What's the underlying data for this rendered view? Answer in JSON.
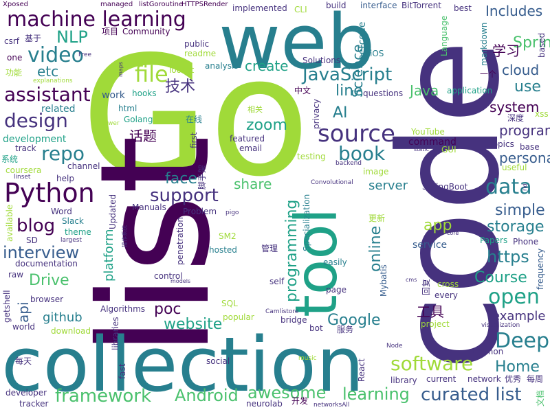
{
  "words": {
    "go": "Go",
    "list": "list",
    "code": "code",
    "collection": "collection",
    "web": "web",
    "tool": "tool",
    "machine_learning": "machine learning",
    "python": "Python",
    "source": "source",
    "video": "video",
    "javascript": "JavaScript",
    "data": "data",
    "file": "file",
    "nlp": "NLP",
    "repo": "repo",
    "assistant": "assistant",
    "design": "design",
    "software": "software",
    "framework": "framework",
    "curated_list": "curated list",
    "android": "Android",
    "awesome": "awesome",
    "learning": "learning",
    "blog": "blog",
    "interview": "interview",
    "support": "support",
    "book": "book",
    "deep": "Deep",
    "open": "open",
    "course": "Course",
    "drive": "Drive",
    "google": "Google",
    "home": "Home",
    "face": "face",
    "https": "https",
    "programming": "programming",
    "website": "website",
    "poc": "poc",
    "online": "online",
    "spring": "Spring",
    "includes": "Includes",
    "cloud": "cloud",
    "use": "use",
    "system": "system",
    "program": "program",
    "personal": "personal",
    "science": "Science",
    "line": "line",
    "create": "create",
    "server": "server",
    "simple": "simple",
    "storage": "storage",
    "app": "app",
    "example": "example",
    "share": "share",
    "zoom": "zoom",
    "etc": "etc",
    "ai": "AI",
    "github": "github",
    "api": "api",
    "platform": "platform",
    "java": "Java",
    "xue_xi": "学习",
    "ji_shu": "技术",
    "hua_ti": "话题",
    "gong_ju": "工具",
    "service": "service",
    "command": "command",
    "leetcode": "leetcode",
    "development": "development",
    "related": "related",
    "html": "html",
    "golang": "Golang",
    "work": "work",
    "hooks": "hooks",
    "analysis": "analysis",
    "public": "public",
    "community": "Community",
    "xiang_mu": "项目",
    "implemented": "implemented",
    "build": "build",
    "interface": "interface",
    "bittorrent": "BitTorrent",
    "best": "best",
    "managed": "managed",
    "listgoroutine": "listGoroutine",
    "httpsrender": "HTTPSRender",
    "xposed": "Xposed",
    "csrf": "csrf",
    "ji_yu": "基于",
    "one": "one",
    "gong_neng": "功能",
    "explanations": "explanations",
    "free": "Free",
    "maps": "maps",
    "toolkit": "Toolkit",
    "readme": "readme",
    "cli": "CLI",
    "ios": "iOS",
    "solutions": "Solutions",
    "markdown": "markdown",
    "language": "Language",
    "based": "based",
    "yi_ge": "一个",
    "application": "application",
    "questions": "questions",
    "zhong_wen": "中文",
    "xiang_guan": "相关",
    "privacy": "privacy",
    "zai_xian": "在线",
    "tower": "tower",
    "shen_du": "深度",
    "xss": "xss",
    "youtube": "YouTube",
    "static": "static",
    "gui": "GUI",
    "topics": "topics",
    "base": "base",
    "useful": "useful",
    "rid": "rid",
    "featured": "featured",
    "email": "email",
    "first": "first",
    "testing": "testing",
    "backend": "backend",
    "image": "image",
    "track": "track",
    "xi_tong": "系统",
    "coursera": "coursera",
    "channel": "channel",
    "linset": "linset",
    "help": "help",
    "jiao_shou_jia": "脚手架",
    "convolutional": "Convolutional",
    "springboot": "SpringBoot",
    "word": "Word",
    "slack": "Slack",
    "theme": "theme",
    "available": "available",
    "sd": "SD",
    "largest": "largest",
    "updated": "Updated",
    "manuals": "Manuals",
    "problem": "Problem",
    "pigo": "pigo",
    "sm2": "SM2",
    "cao_zuo_xi_tong": "操作系统",
    "penetration": "penetration",
    "hosted": "hosted",
    "guan_li": "管理",
    "specialization": "Specialization",
    "geng_xin": "更新",
    "papers": "Papers",
    "core": "core",
    "phone": "Phone",
    "documentation": "documentation",
    "raw": "raw",
    "control": "control",
    "models": "models",
    "self": "self",
    "easily": "easily",
    "mybatis": "Mybatis",
    "cms": "cms",
    "hui_fu": "回复",
    "frequency": "frequency",
    "cross": "cross",
    "every": "every",
    "getshell": "getshell",
    "browser": "browser",
    "algorithms": "Algorithms",
    "sql": "SQL",
    "page": "page",
    "libraries": "libraries",
    "popular": "popular",
    "world": "world",
    "download": "download",
    "camlistore": "Camlistore",
    "bridge": "bridge",
    "bot": "bot",
    "fu_wu": "服务",
    "project": "project",
    "visualization": "visualization",
    "common": "common",
    "mei_tian": "每天",
    "fast": "fast",
    "social": "social",
    "music": "music",
    "react": "React",
    "node": "Node",
    "library": "library",
    "current": "current",
    "network": "network",
    "you_xiu": "优秀",
    "mei_zhou": "每周",
    "wen_dang": "文档",
    "developer": "developer",
    "tracker": "tracker",
    "neurolab": "neurolab",
    "kai_fa": "开发",
    "networksall": "networksAll"
  },
  "palette": {
    "purple": "#440154",
    "indigo": "#46327e",
    "blue": "#365c8d",
    "steel": "#277f8e",
    "teal": "#1fa187",
    "green": "#4ac16d",
    "lime": "#a0da39",
    "yellow": "#fde725"
  }
}
